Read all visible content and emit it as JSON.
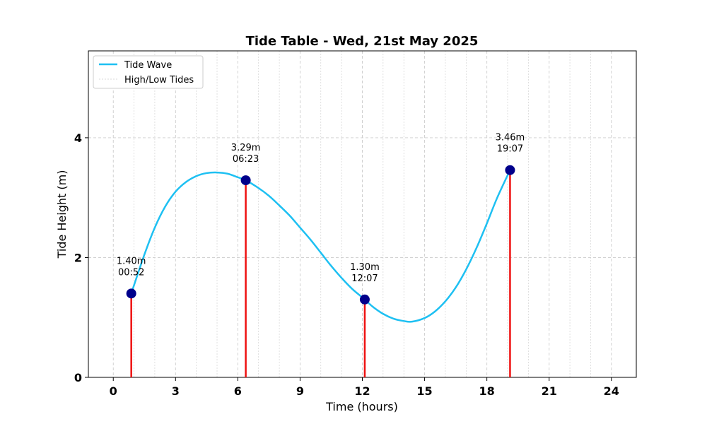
{
  "chart_data": {
    "type": "line",
    "title": "Tide Table - Wed, 21st May 2025",
    "xlabel": "Time (hours)",
    "ylabel": "Tide Height (m)",
    "xlim": [
      -1.2,
      25.2
    ],
    "ylim": [
      0,
      5.45
    ],
    "xticks": [
      0,
      3,
      6,
      9,
      12,
      15,
      18,
      21,
      24
    ],
    "xtick_labels": [
      "0",
      "3",
      "6",
      "9",
      "12",
      "15",
      "18",
      "21",
      "24"
    ],
    "yticks": [
      0,
      2,
      4
    ],
    "ytick_labels": [
      "0",
      "2",
      "4"
    ],
    "grid": true,
    "legend": {
      "placement": "top-left",
      "entries": [
        "Tide Wave",
        "High/Low Tides"
      ]
    },
    "colors": {
      "wave": "#1ec0f2",
      "stem": "#ee1111",
      "marker": "#00008b",
      "grid": "#cccccc"
    },
    "tides": [
      {
        "time": 0.867,
        "height": 1.4,
        "height_label": "1.40m",
        "time_label": "00:52"
      },
      {
        "time": 6.383,
        "height": 3.29,
        "height_label": "3.29m",
        "time_label": "06:23"
      },
      {
        "time": 12.117,
        "height": 1.3,
        "height_label": "1.30m",
        "time_label": "12:07"
      },
      {
        "time": 19.117,
        "height": 3.46,
        "height_label": "3.46m",
        "time_label": "19:07"
      }
    ],
    "wave": {
      "name": "Tide Wave",
      "x": [
        0.867,
        1.5,
        2.0,
        2.5,
        3.0,
        3.5,
        4.0,
        4.5,
        5.0,
        5.5,
        6.0,
        6.383,
        7.0,
        7.5,
        8.0,
        8.5,
        9.0,
        9.5,
        10.0,
        10.5,
        11.0,
        11.5,
        12.117,
        12.5,
        13.0,
        13.5,
        14.0,
        14.4,
        15.0,
        15.5,
        16.0,
        16.5,
        17.0,
        17.5,
        18.0,
        18.5,
        19.117
      ],
      "y": [
        1.4,
        2.05,
        2.5,
        2.85,
        3.1,
        3.26,
        3.36,
        3.41,
        3.42,
        3.4,
        3.34,
        3.29,
        3.16,
        3.03,
        2.87,
        2.7,
        2.5,
        2.3,
        2.08,
        1.86,
        1.66,
        1.48,
        1.3,
        1.18,
        1.06,
        0.98,
        0.94,
        0.93,
        0.99,
        1.1,
        1.27,
        1.5,
        1.8,
        2.16,
        2.57,
        3.0,
        3.46
      ]
    }
  }
}
